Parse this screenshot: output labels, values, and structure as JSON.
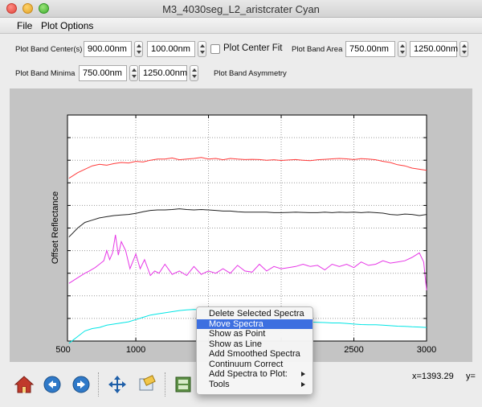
{
  "window": {
    "title": "M3_4030seg_L2_aristcrater Cyan"
  },
  "menubar": {
    "items": [
      "File",
      "Plot Options"
    ]
  },
  "controls": {
    "band_center_label": "Plot Band Center(s)",
    "band_center_min": "900.00nm",
    "band_center_max": "100.00nm",
    "center_fit_label": "Plot Center Fit",
    "center_fit_checked": false,
    "band_area_label": "Plot Band Area",
    "band_area_min": "750.00nm",
    "band_area_max": "1250.00nm",
    "band_minima_label": "Plot Band Minima",
    "band_minima_min": "750.00nm",
    "band_minima_max": "1250.00nm",
    "band_asymmetry_label": "Plot Band Asymmetry"
  },
  "chart_data": {
    "type": "line",
    "ylabel": "Offset Reflectance",
    "xlim": [
      530,
      3000
    ],
    "ylim": [
      0,
      10
    ],
    "xticks": [
      500,
      1000,
      1500,
      2000,
      2500,
      3000
    ],
    "x_tick_labels": [
      "500",
      "1000",
      "",
      "",
      "2500",
      "3000"
    ],
    "grid": true,
    "series": [
      {
        "color": "#ff3b3b",
        "x": [
          540,
          600,
          650,
          700,
          750,
          800,
          850,
          900,
          950,
          1000,
          1050,
          1100,
          1150,
          1200,
          1250,
          1300,
          1350,
          1400,
          1450,
          1500,
          1550,
          1600,
          1650,
          1700,
          1750,
          1800,
          1850,
          1900,
          1950,
          2000,
          2050,
          2100,
          2150,
          2200,
          2250,
          2300,
          2350,
          2400,
          2450,
          2500,
          2550,
          2600,
          2650,
          2700,
          2750,
          2800,
          2850,
          2900,
          2950,
          3000
        ],
        "values": [
          7.2,
          7.45,
          7.6,
          7.75,
          7.82,
          7.78,
          7.85,
          7.9,
          7.88,
          7.95,
          7.92,
          8.0,
          8.05,
          8.05,
          8.1,
          8.02,
          8.05,
          8.08,
          8.12,
          8.05,
          8.08,
          8.02,
          8.08,
          8.05,
          8.03,
          8.04,
          8.03,
          8.0,
          8.02,
          7.99,
          8.01,
          8.03,
          8.0,
          7.98,
          8.02,
          8.04,
          8.06,
          8.08,
          8.06,
          8.03,
          8.07,
          8.05,
          8.02,
          7.95,
          7.9,
          7.8,
          7.75,
          7.65,
          7.6,
          7.55
        ]
      },
      {
        "color": "#222222",
        "x": [
          540,
          600,
          650,
          700,
          750,
          800,
          850,
          900,
          950,
          1000,
          1050,
          1100,
          1150,
          1200,
          1250,
          1300,
          1350,
          1400,
          1450,
          1500,
          1550,
          1600,
          1650,
          1700,
          1750,
          1800,
          1850,
          1900,
          1950,
          2000,
          2050,
          2100,
          2150,
          2200,
          2250,
          2300,
          2350,
          2400,
          2450,
          2500,
          2550,
          2600,
          2650,
          2700,
          2750,
          2800,
          2850,
          2900,
          2950,
          3000
        ],
        "values": [
          4.6,
          5.0,
          5.25,
          5.35,
          5.45,
          5.5,
          5.55,
          5.58,
          5.6,
          5.65,
          5.72,
          5.78,
          5.8,
          5.8,
          5.82,
          5.85,
          5.82,
          5.8,
          5.82,
          5.8,
          5.78,
          5.75,
          5.75,
          5.72,
          5.7,
          5.7,
          5.7,
          5.7,
          5.68,
          5.68,
          5.69,
          5.7,
          5.69,
          5.68,
          5.68,
          5.7,
          5.68,
          5.7,
          5.69,
          5.7,
          5.68,
          5.7,
          5.68,
          5.66,
          5.6,
          5.58,
          5.62,
          5.6,
          5.55,
          5.6
        ]
      },
      {
        "color": "#e637e6",
        "x": [
          540,
          600,
          650,
          680,
          720,
          750,
          780,
          800,
          820,
          840,
          860,
          880,
          900,
          930,
          960,
          1000,
          1030,
          1060,
          1100,
          1130,
          1160,
          1200,
          1250,
          1300,
          1350,
          1400,
          1450,
          1500,
          1550,
          1600,
          1650,
          1700,
          1750,
          1800,
          1850,
          1900,
          1950,
          2000,
          2050,
          2100,
          2150,
          2200,
          2250,
          2300,
          2350,
          2400,
          2450,
          2500,
          2550,
          2600,
          2650,
          2700,
          2750,
          2800,
          2850,
          2900,
          2950,
          2980,
          3000
        ],
        "values": [
          2.55,
          2.8,
          3.0,
          3.1,
          3.25,
          3.4,
          3.55,
          4.0,
          3.6,
          3.9,
          4.7,
          3.8,
          4.4,
          4.0,
          3.2,
          3.85,
          3.2,
          3.6,
          2.9,
          3.1,
          3.0,
          3.4,
          2.95,
          3.1,
          2.9,
          3.3,
          2.95,
          3.1,
          3.0,
          3.2,
          3.0,
          3.35,
          3.1,
          3.05,
          3.4,
          3.1,
          3.3,
          3.2,
          3.25,
          3.3,
          3.4,
          3.3,
          3.35,
          3.15,
          3.4,
          3.3,
          3.4,
          3.25,
          3.5,
          3.35,
          3.4,
          3.55,
          3.45,
          3.5,
          3.55,
          3.7,
          3.9,
          3.5,
          2.25
        ]
      },
      {
        "color": "#00e5e5",
        "x": [
          540,
          600,
          650,
          700,
          750,
          800,
          850,
          900,
          950,
          1000,
          1050,
          1100,
          1150,
          1200,
          1250,
          1300,
          1350,
          1400,
          1450,
          1500,
          1550,
          1600,
          1650,
          1700,
          1750,
          1800,
          1850,
          1900,
          1950,
          2000,
          2050,
          2100,
          2150,
          2200,
          2250,
          2300,
          2350,
          2400,
          2450,
          2500,
          2550,
          2600,
          2650,
          2700,
          2750,
          2800,
          2850,
          2900,
          2950,
          3000
        ],
        "values": [
          -0.1,
          0.2,
          0.45,
          0.55,
          0.6,
          0.7,
          0.75,
          0.8,
          0.85,
          0.95,
          1.05,
          1.15,
          1.2,
          1.25,
          1.3,
          1.35,
          1.38,
          1.4,
          1.38,
          1.4,
          1.35,
          1.3,
          1.25,
          1.2,
          1.15,
          1.1,
          1.05,
          1.0,
          0.95,
          0.9,
          0.88,
          0.86,
          0.85,
          0.84,
          0.83,
          0.82,
          0.8,
          0.8,
          0.78,
          0.75,
          0.73,
          0.72,
          0.72,
          0.7,
          0.68,
          0.66,
          0.65,
          0.63,
          0.62,
          0.6
        ]
      }
    ]
  },
  "toolbar": {
    "tools": [
      "home-icon",
      "back-icon",
      "forward-icon",
      "pan-icon",
      "zoom-icon",
      "configure-subplots-icon",
      "save-icon"
    ],
    "coord_x": "x=1393.29",
    "coord_y": "y="
  },
  "context_menu": {
    "items": [
      {
        "label": "Delete Selected Spectra",
        "active": false,
        "submenu": false
      },
      {
        "label": "Move Spectra",
        "active": true,
        "submenu": false
      },
      {
        "label": "Show as Point",
        "active": false,
        "submenu": false
      },
      {
        "label": "Show as Line",
        "active": false,
        "submenu": false
      },
      {
        "label": "Add Smoothed Spectra",
        "active": false,
        "submenu": false
      },
      {
        "label": "Continuum Correct",
        "active": false,
        "submenu": false
      },
      {
        "label": "Add Spectra to Plot:",
        "active": false,
        "submenu": true
      },
      {
        "label": "Tools",
        "active": false,
        "submenu": true
      }
    ]
  }
}
